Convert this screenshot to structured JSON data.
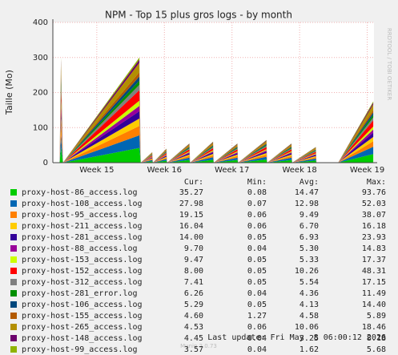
{
  "chart_data": {
    "type": "area",
    "stacked": true,
    "title": "NPM - Top 15 plus gros logs - by month",
    "y_label": "Taille (Mo)",
    "side_text": "RRDTOOL / TOBI OETIKER",
    "x": [
      14.45,
      14.47,
      14.5,
      15.63,
      15.65,
      15.82,
      15.83,
      16.03,
      16.04,
      16.37,
      16.38,
      16.72,
      16.73,
      17.08,
      17.09,
      17.51,
      17.52,
      17.88,
      17.89,
      18.24,
      18.25,
      18.57,
      19.09
    ],
    "xlim": [
      14.35,
      19.1
    ],
    "xticks": [
      {
        "value": 15,
        "label": "Week 15"
      },
      {
        "value": 16,
        "label": "Week 16"
      },
      {
        "value": 17,
        "label": "Week 17"
      },
      {
        "value": 18,
        "label": "Week 18"
      },
      {
        "value": 19,
        "label": "Week 19"
      }
    ],
    "ylim": [
      0,
      400
    ],
    "yticks": [
      0,
      100,
      200,
      300,
      400
    ],
    "grid": true,
    "stat_headers": [
      "Cur:",
      "Min:",
      "Avg:",
      "Max:"
    ],
    "series": [
      {
        "name": "proxy-host-86_access.log",
        "color": "#00cc00",
        "stats": [
          "35.27",
          "0.08",
          "14.47",
          "93.76"
        ],
        "values": [
          0,
          42,
          0,
          42,
          0,
          4.2,
          0,
          5.6,
          0,
          7.7,
          0,
          8.4,
          0,
          7.7,
          0,
          9.1,
          0,
          7.7,
          0,
          6.3,
          0,
          0,
          24.5
        ]
      },
      {
        "name": "proxy-host-108_access.log",
        "color": "#0066b3",
        "stats": [
          "27.98",
          "0.07",
          "12.98",
          "52.03"
        ],
        "values": [
          0,
          36,
          0,
          36,
          0,
          3.6,
          0,
          4.8,
          0,
          6.6,
          0,
          7.2,
          0,
          6.6,
          0,
          7.8,
          0,
          6.6,
          0,
          5.4,
          0,
          0,
          21
        ]
      },
      {
        "name": "proxy-host-95_access.log",
        "color": "#ff8000",
        "stats": [
          "19.15",
          "0.06",
          "9.49",
          "38.07"
        ],
        "values": [
          0,
          27,
          0,
          27,
          0,
          2.7,
          0,
          3.6,
          0,
          4.95,
          0,
          5.4,
          0,
          4.95,
          0,
          5.85,
          0,
          4.95,
          0,
          4.05,
          0,
          0,
          15.75
        ]
      },
      {
        "name": "proxy-host-211_access.log",
        "color": "#ffcc00",
        "stats": [
          "16.04",
          "0.06",
          "6.70",
          "16.18"
        ],
        "values": [
          0,
          21,
          0,
          21,
          0,
          2.1,
          0,
          2.8,
          0,
          3.85,
          0,
          4.2,
          0,
          3.85,
          0,
          4.55,
          0,
          3.85,
          0,
          3.15,
          0,
          0,
          12.25
        ]
      },
      {
        "name": "proxy-host-281_access.log",
        "color": "#330099",
        "stats": [
          "14.00",
          "0.05",
          "6.93",
          "23.93"
        ],
        "values": [
          0,
          21,
          0,
          21,
          0,
          2.1,
          0,
          2.8,
          0,
          3.85,
          0,
          4.2,
          0,
          3.85,
          0,
          4.55,
          0,
          3.85,
          0,
          3.15,
          0,
          0,
          12.25
        ]
      },
      {
        "name": "proxy-host-88_access.log",
        "color": "#990099",
        "stats": [
          "9.70",
          "0.04",
          "5.30",
          "14.83"
        ],
        "values": [
          0,
          15,
          0,
          15,
          0,
          1.5,
          0,
          2,
          0,
          2.75,
          0,
          3,
          0,
          2.75,
          0,
          3.25,
          0,
          2.75,
          0,
          2.25,
          0,
          0,
          8.75
        ]
      },
      {
        "name": "proxy-host-153_access.log",
        "color": "#ccff00",
        "stats": [
          "9.47",
          "0.05",
          "5.33",
          "17.37"
        ],
        "values": [
          0,
          15,
          0,
          15,
          0,
          1.5,
          0,
          2,
          0,
          2.75,
          0,
          3,
          0,
          2.75,
          0,
          3.25,
          0,
          2.75,
          0,
          2.25,
          0,
          0,
          8.75
        ]
      },
      {
        "name": "proxy-host-152_access.log",
        "color": "#ff0000",
        "stats": [
          "8.00",
          "0.05",
          "10.26",
          "48.31"
        ],
        "values": [
          0,
          30,
          0,
          30,
          0,
          3,
          0,
          4,
          0,
          5.5,
          0,
          6,
          0,
          5.5,
          0,
          6.5,
          0,
          5.5,
          0,
          4.5,
          0,
          0,
          17.5
        ]
      },
      {
        "name": "proxy-host-312_access.log",
        "color": "#808080",
        "stats": [
          "7.41",
          "0.05",
          "5.54",
          "17.15"
        ],
        "values": [
          0,
          15,
          0,
          15,
          0,
          1.5,
          0,
          2,
          0,
          2.75,
          0,
          3,
          0,
          2.75,
          0,
          3.25,
          0,
          2.75,
          0,
          2.25,
          0,
          0,
          8.75
        ]
      },
      {
        "name": "proxy-host-281_error.log",
        "color": "#008f00",
        "stats": [
          "6.26",
          "0.04",
          "4.36",
          "11.49"
        ],
        "values": [
          0,
          12,
          0,
          12,
          0,
          1.2,
          0,
          1.6,
          0,
          2.2,
          0,
          2.4,
          0,
          2.2,
          0,
          2.6,
          0,
          2.2,
          0,
          1.8,
          0,
          0,
          7
        ]
      },
      {
        "name": "proxy-host-106_access.log",
        "color": "#00487d",
        "stats": [
          "5.29",
          "0.05",
          "4.13",
          "14.40"
        ],
        "values": [
          0,
          12,
          0,
          12,
          0,
          1.2,
          0,
          1.6,
          0,
          2.2,
          0,
          2.4,
          0,
          2.2,
          0,
          2.6,
          0,
          2.2,
          0,
          1.8,
          0,
          0,
          7
        ]
      },
      {
        "name": "proxy-host-155_access.log",
        "color": "#b35a00",
        "stats": [
          "4.60",
          "1.27",
          "4.58",
          "5.89"
        ],
        "values": [
          0,
          12,
          0,
          12,
          0,
          1.2,
          0,
          1.6,
          0,
          2.2,
          0,
          2.4,
          0,
          2.2,
          0,
          2.6,
          0,
          2.2,
          0,
          1.8,
          0,
          0,
          7
        ]
      },
      {
        "name": "proxy-host-265_access.log",
        "color": "#b38f00",
        "stats": [
          "4.53",
          "0.06",
          "10.06",
          "18.46"
        ],
        "values": [
          0,
          27,
          0,
          27,
          0,
          2.7,
          0,
          3.6,
          0,
          4.95,
          0,
          5.4,
          0,
          4.95,
          0,
          5.85,
          0,
          4.95,
          0,
          4.05,
          0,
          0,
          15.75
        ]
      },
      {
        "name": "proxy-host-148_access.log",
        "color": "#6b006b",
        "stats": [
          "4.45",
          "0.04",
          "3.25",
          "8.18"
        ],
        "values": [
          0,
          9,
          0,
          9,
          0,
          0.9,
          0,
          1.2,
          0,
          1.65,
          0,
          1.8,
          0,
          1.65,
          0,
          1.95,
          0,
          1.65,
          0,
          1.35,
          0,
          0,
          5.25
        ]
      },
      {
        "name": "proxy-host-99_access.log",
        "color": "#8fb300",
        "stats": [
          "3.57",
          "0.04",
          "1.62",
          "5.68"
        ],
        "values": [
          0,
          6,
          0,
          6,
          0,
          0.6,
          0,
          0.8,
          0,
          1.1,
          0,
          1.2,
          0,
          1.1,
          0,
          1.3,
          0,
          1.1,
          0,
          0.9,
          0,
          0,
          3.5
        ]
      }
    ],
    "last_update": "Last update: Fri May  8 06:00:12 2026",
    "footer": "Munin 2.0.73"
  }
}
